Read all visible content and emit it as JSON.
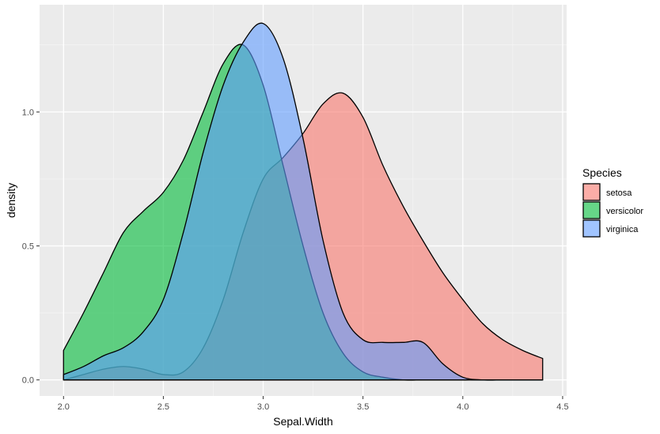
{
  "chart_data": {
    "type": "area",
    "subtype": "density",
    "title": "",
    "xlabel": "Sepal.Width",
    "ylabel": "density",
    "xlim": [
      1.88,
      4.52
    ],
    "ylim": [
      -0.06,
      1.4
    ],
    "x_ticks": [
      2.0,
      2.5,
      3.0,
      3.5,
      4.0,
      4.5
    ],
    "x_tick_labels": [
      "2.0",
      "2.5",
      "3.0",
      "3.5",
      "4.0",
      "4.5"
    ],
    "y_ticks": [
      0.0,
      0.5,
      1.0
    ],
    "y_tick_labels": [
      "0.0",
      "0.5",
      "1.0"
    ],
    "grid": true,
    "legend": {
      "title": "Species",
      "placement": "right"
    },
    "series": [
      {
        "name": "setosa",
        "color": "#F8766D",
        "x": [
          2.0,
          2.1,
          2.2,
          2.3,
          2.4,
          2.5,
          2.6,
          2.7,
          2.8,
          2.9,
          3.0,
          3.1,
          3.2,
          3.3,
          3.4,
          3.5,
          3.6,
          3.7,
          3.8,
          3.9,
          4.0,
          4.1,
          4.2,
          4.3,
          4.4
        ],
        "y": [
          0.0,
          0.02,
          0.04,
          0.05,
          0.04,
          0.02,
          0.03,
          0.12,
          0.3,
          0.55,
          0.75,
          0.83,
          0.92,
          1.03,
          1.07,
          0.98,
          0.8,
          0.65,
          0.52,
          0.4,
          0.3,
          0.21,
          0.15,
          0.11,
          0.08
        ]
      },
      {
        "name": "versicolor",
        "color": "#00BA38",
        "x": [
          2.0,
          2.1,
          2.2,
          2.3,
          2.4,
          2.5,
          2.6,
          2.7,
          2.8,
          2.9,
          3.0,
          3.1,
          3.2,
          3.3,
          3.4,
          3.5,
          3.6,
          3.7,
          3.8,
          3.9,
          4.0,
          4.1,
          4.2,
          4.3,
          4.4
        ],
        "y": [
          0.11,
          0.25,
          0.4,
          0.55,
          0.63,
          0.7,
          0.82,
          1.0,
          1.18,
          1.25,
          1.1,
          0.8,
          0.5,
          0.25,
          0.1,
          0.03,
          0.01,
          0.0,
          0.0,
          0.0,
          0.0,
          0.0,
          0.0,
          0.0,
          0.0
        ]
      },
      {
        "name": "virginica",
        "color": "#619CFF",
        "x": [
          2.0,
          2.1,
          2.2,
          2.3,
          2.4,
          2.5,
          2.6,
          2.7,
          2.8,
          2.9,
          3.0,
          3.1,
          3.2,
          3.3,
          3.4,
          3.5,
          3.6,
          3.7,
          3.8,
          3.9,
          4.0,
          4.1,
          4.2,
          4.3,
          4.4
        ],
        "y": [
          0.02,
          0.05,
          0.09,
          0.12,
          0.18,
          0.3,
          0.55,
          0.85,
          1.1,
          1.26,
          1.33,
          1.2,
          0.9,
          0.52,
          0.25,
          0.15,
          0.14,
          0.14,
          0.14,
          0.06,
          0.01,
          0.0,
          0.0,
          0.0,
          0.0
        ]
      }
    ]
  }
}
